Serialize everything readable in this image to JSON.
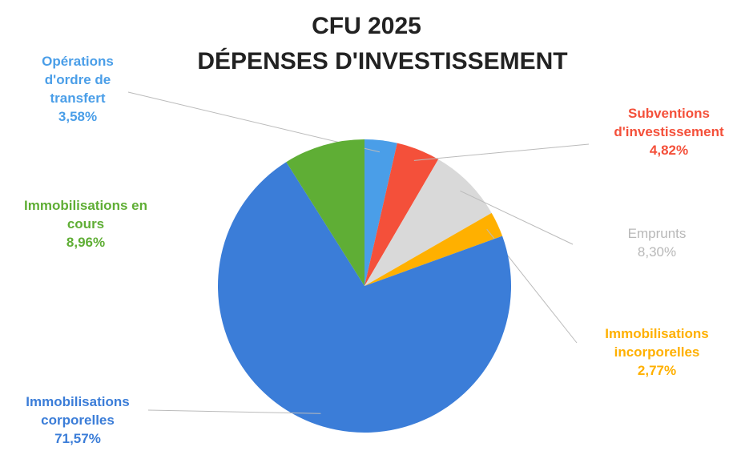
{
  "chart_data": {
    "type": "pie",
    "title": "CFU 2025",
    "subtitle": "DÉPENSES D'INVESTISSEMENT",
    "categories": [
      "Opérations d'ordre de transfert",
      "Subventions d'investissement",
      "Emprunts",
      "Immobilisations incorporelles",
      "Immobilisations corporelles",
      "Immobilisations en cours"
    ],
    "values": [
      3.58,
      4.82,
      8.3,
      2.77,
      71.57,
      8.96
    ],
    "value_labels": [
      "3,58%",
      "4,82%",
      "8,30%",
      "2,77%",
      "71,57%",
      "8,96%"
    ],
    "colors": [
      "#4a9ee8",
      "#f4503a",
      "#d9d9d9",
      "#ffb000",
      "#3b7dd8",
      "#5fae35"
    ]
  }
}
